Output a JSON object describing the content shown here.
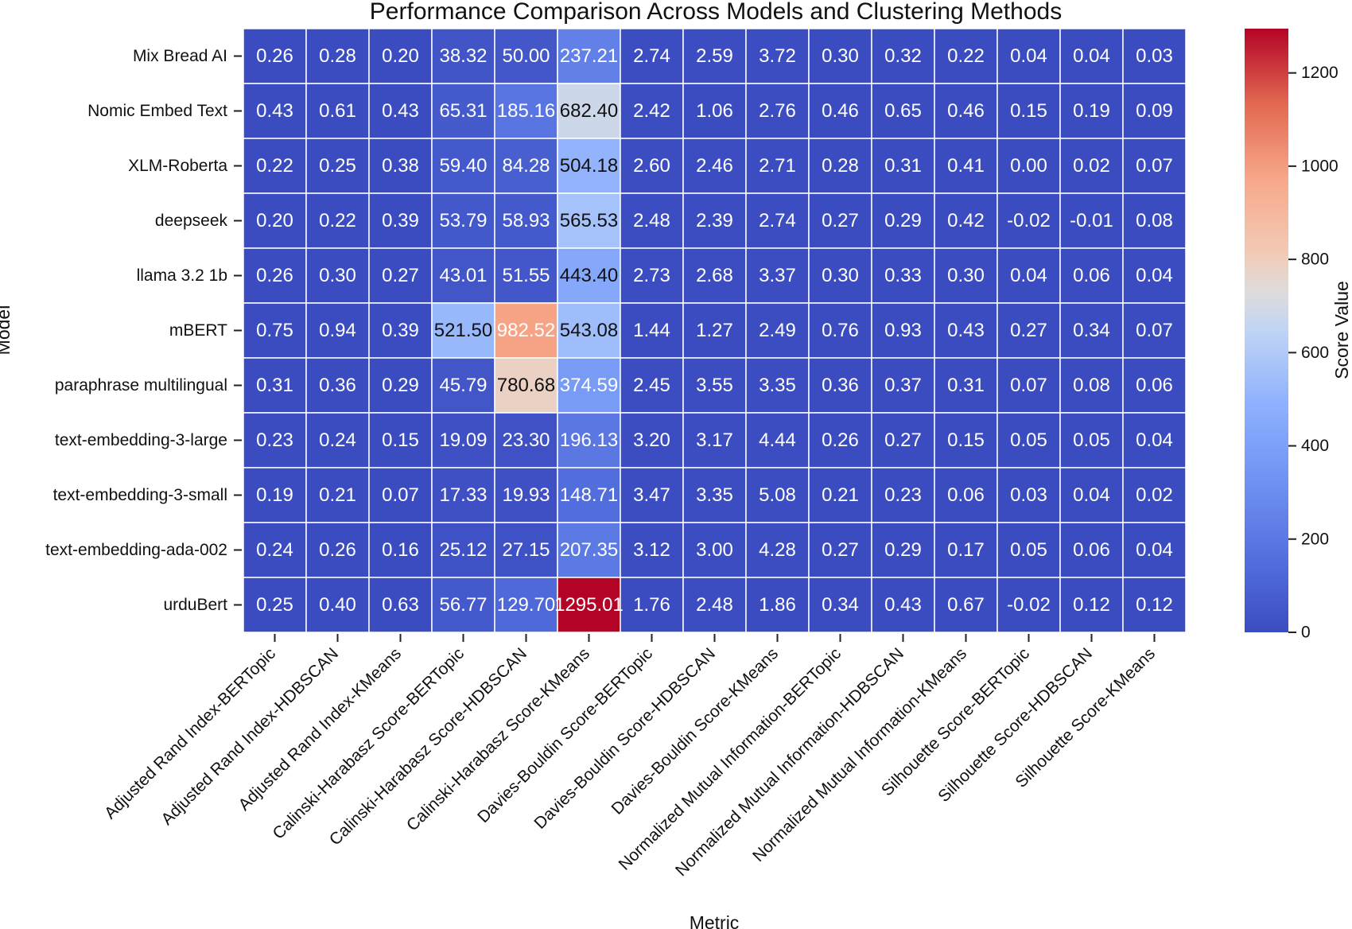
{
  "chart_data": {
    "type": "heatmap",
    "title": "Performance Comparison Across Models and Clustering Methods",
    "xlabel": "Metric",
    "ylabel": "Model",
    "colorbar_label": "Score Value",
    "colorbar_ticks": [
      0,
      200,
      400,
      600,
      800,
      1000,
      1200
    ],
    "vmin": -0.02,
    "vmax": 1295.01,
    "colormap": "coolwarm",
    "rows": [
      "Mix Bread AI",
      "Nomic Embed Text",
      "XLM-Roberta",
      "deepseek",
      "llama 3.2 1b",
      "mBERT",
      "paraphrase multilingual",
      "text-embedding-3-large",
      "text-embedding-3-small",
      "text-embedding-ada-002",
      "urduBert"
    ],
    "columns": [
      "Adjusted Rand Index-BERTopic",
      "Adjusted Rand Index-HDBSCAN",
      "Adjusted Rand Index-KMeans",
      "Calinski-Harabasz Score-BERTopic",
      "Calinski-Harabasz Score-HDBSCAN",
      "Calinski-Harabasz Score-KMeans",
      "Davies-Bouldin Score-BERTopic",
      "Davies-Bouldin Score-HDBSCAN",
      "Davies-Bouldin Score-KMeans",
      "Normalized Mutual Information-BERTopic",
      "Normalized Mutual Information-HDBSCAN",
      "Normalized Mutual Information-KMeans",
      "Silhouette Score-BERTopic",
      "Silhouette Score-HDBSCAN",
      "Silhouette Score-KMeans"
    ],
    "values": [
      [
        "0.26",
        "0.28",
        "0.20",
        "38.32",
        "50.00",
        "237.21",
        "2.74",
        "2.59",
        "3.72",
        "0.30",
        "0.32",
        "0.22",
        "0.04",
        "0.04",
        "0.03"
      ],
      [
        "0.43",
        "0.61",
        "0.43",
        "65.31",
        "185.16",
        "682.40",
        "2.42",
        "1.06",
        "2.76",
        "0.46",
        "0.65",
        "0.46",
        "0.15",
        "0.19",
        "0.09"
      ],
      [
        "0.22",
        "0.25",
        "0.38",
        "59.40",
        "84.28",
        "504.18",
        "2.60",
        "2.46",
        "2.71",
        "0.28",
        "0.31",
        "0.41",
        "0.00",
        "0.02",
        "0.07"
      ],
      [
        "0.20",
        "0.22",
        "0.39",
        "53.79",
        "58.93",
        "565.53",
        "2.48",
        "2.39",
        "2.74",
        "0.27",
        "0.29",
        "0.42",
        "-0.02",
        "-0.01",
        "0.08"
      ],
      [
        "0.26",
        "0.30",
        "0.27",
        "43.01",
        "51.55",
        "443.40",
        "2.73",
        "2.68",
        "3.37",
        "0.30",
        "0.33",
        "0.30",
        "0.04",
        "0.06",
        "0.04"
      ],
      [
        "0.75",
        "0.94",
        "0.39",
        "521.50",
        "982.52",
        "543.08",
        "1.44",
        "1.27",
        "2.49",
        "0.76",
        "0.93",
        "0.43",
        "0.27",
        "0.34",
        "0.07"
      ],
      [
        "0.31",
        "0.36",
        "0.29",
        "45.79",
        "780.68",
        "374.59",
        "2.45",
        "3.55",
        "3.35",
        "0.36",
        "0.37",
        "0.31",
        "0.07",
        "0.08",
        "0.06"
      ],
      [
        "0.23",
        "0.24",
        "0.15",
        "19.09",
        "23.30",
        "196.13",
        "3.20",
        "3.17",
        "4.44",
        "0.26",
        "0.27",
        "0.15",
        "0.05",
        "0.05",
        "0.04"
      ],
      [
        "0.19",
        "0.21",
        "0.07",
        "17.33",
        "19.93",
        "148.71",
        "3.47",
        "3.35",
        "5.08",
        "0.21",
        "0.23",
        "0.06",
        "0.03",
        "0.04",
        "0.02"
      ],
      [
        "0.24",
        "0.26",
        "0.16",
        "25.12",
        "27.15",
        "207.35",
        "3.12",
        "3.00",
        "4.28",
        "0.27",
        "0.29",
        "0.17",
        "0.05",
        "0.06",
        "0.04"
      ],
      [
        "0.25",
        "0.40",
        "0.63",
        "56.77",
        "129.70",
        "1295.01",
        "1.76",
        "2.48",
        "1.86",
        "0.34",
        "0.43",
        "0.67",
        "-0.02",
        "0.12",
        "0.12"
      ]
    ]
  }
}
